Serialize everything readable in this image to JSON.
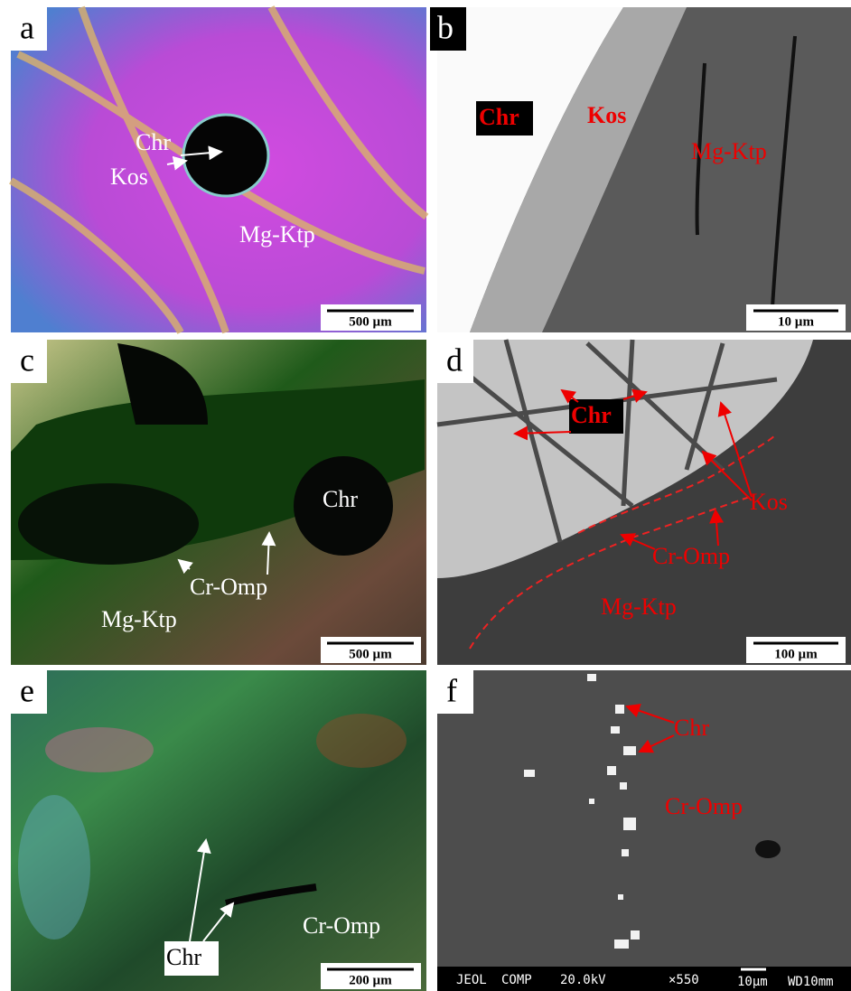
{
  "panels": [
    {
      "letter": "a",
      "labels": [
        "Chr",
        "Kos",
        "Mg-Ktp"
      ],
      "scale": "500 µm"
    },
    {
      "letter": "b",
      "labels": [
        "Chr",
        "Kos",
        "Mg-Ktp"
      ],
      "scale": "10 µm"
    },
    {
      "letter": "c",
      "labels": [
        "Chr",
        "Cr-Omp",
        "Mg-Ktp"
      ],
      "scale": "500 µm"
    },
    {
      "letter": "d",
      "labels": [
        "Chr",
        "Kos",
        "Cr-Omp",
        "Mg-Ktp"
      ],
      "scale": "100 µm"
    },
    {
      "letter": "e",
      "labels": [
        "Chr",
        "Cr-Omp"
      ],
      "scale": "200 µm"
    },
    {
      "letter": "f",
      "labels": [
        "Chr",
        "Cr-Omp"
      ],
      "footer": [
        "JEOL",
        "COMP",
        "20.0kV",
        "×550",
        "10µm",
        "WD10mm"
      ]
    }
  ]
}
